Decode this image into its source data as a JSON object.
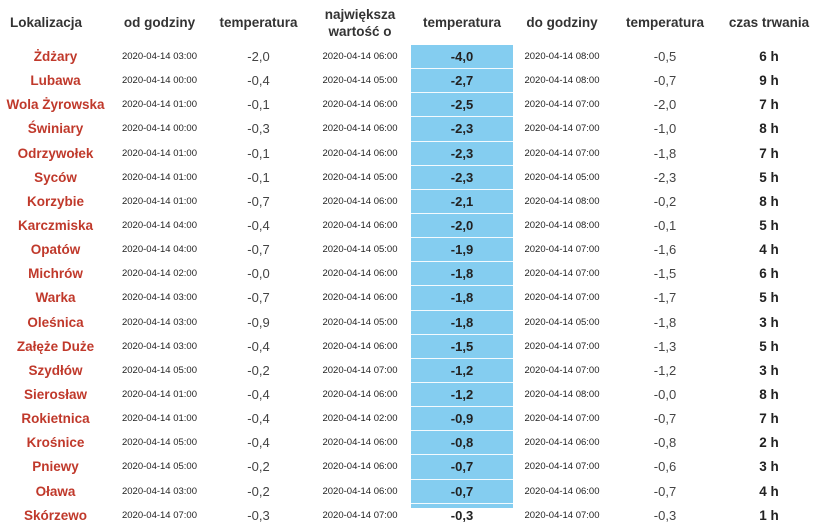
{
  "headers": {
    "location": "Lokalizacja",
    "from_hour": "od godziny",
    "temperature1": "temperatura",
    "largest_value_line1": "największa",
    "largest_value_line2": "wartość o",
    "temperature2": "temperatura",
    "to_hour": "do godziny",
    "temperature3": "temperatura",
    "duration": "czas trwania"
  },
  "colors": {
    "accent": "#84cdf0",
    "location_text": "#c0392b"
  },
  "rows": [
    {
      "loc": "Żdżary",
      "from": "2020-04-14 03:00",
      "t_from": "-2,0",
      "peak_time": "2020-04-14 06:00",
      "t_min": "-4,0",
      "to": "2020-04-14 08:00",
      "t_to": "-0,5",
      "dur": "6 h"
    },
    {
      "loc": "Lubawa",
      "from": "2020-04-14 00:00",
      "t_from": "-0,4",
      "peak_time": "2020-04-14 05:00",
      "t_min": "-2,7",
      "to": "2020-04-14 08:00",
      "t_to": "-0,7",
      "dur": "9 h"
    },
    {
      "loc": "Wola Żyrowska",
      "from": "2020-04-14 01:00",
      "t_from": "-0,1",
      "peak_time": "2020-04-14 06:00",
      "t_min": "-2,5",
      "to": "2020-04-14 07:00",
      "t_to": "-2,0",
      "dur": "7 h"
    },
    {
      "loc": "Świniary",
      "from": "2020-04-14 00:00",
      "t_from": "-0,3",
      "peak_time": "2020-04-14 06:00",
      "t_min": "-2,3",
      "to": "2020-04-14 07:00",
      "t_to": "-1,0",
      "dur": "8 h"
    },
    {
      "loc": "Odrzywołek",
      "from": "2020-04-14 01:00",
      "t_from": "-0,1",
      "peak_time": "2020-04-14 06:00",
      "t_min": "-2,3",
      "to": "2020-04-14 07:00",
      "t_to": "-1,8",
      "dur": "7 h"
    },
    {
      "loc": "Syców",
      "from": "2020-04-14 01:00",
      "t_from": "-0,1",
      "peak_time": "2020-04-14 05:00",
      "t_min": "-2,3",
      "to": "2020-04-14 05:00",
      "t_to": "-2,3",
      "dur": "5 h"
    },
    {
      "loc": "Korzybie",
      "from": "2020-04-14 01:00",
      "t_from": "-0,7",
      "peak_time": "2020-04-14 06:00",
      "t_min": "-2,1",
      "to": "2020-04-14 08:00",
      "t_to": "-0,2",
      "dur": "8 h"
    },
    {
      "loc": "Karczmiska",
      "from": "2020-04-14 04:00",
      "t_from": "-0,4",
      "peak_time": "2020-04-14 06:00",
      "t_min": "-2,0",
      "to": "2020-04-14 08:00",
      "t_to": "-0,1",
      "dur": "5 h"
    },
    {
      "loc": "Opatów",
      "from": "2020-04-14 04:00",
      "t_from": "-0,7",
      "peak_time": "2020-04-14 05:00",
      "t_min": "-1,9",
      "to": "2020-04-14 07:00",
      "t_to": "-1,6",
      "dur": "4 h"
    },
    {
      "loc": "Michrów",
      "from": "2020-04-14 02:00",
      "t_from": "-0,0",
      "peak_time": "2020-04-14 06:00",
      "t_min": "-1,8",
      "to": "2020-04-14 07:00",
      "t_to": "-1,5",
      "dur": "6 h"
    },
    {
      "loc": "Warka",
      "from": "2020-04-14 03:00",
      "t_from": "-0,7",
      "peak_time": "2020-04-14 06:00",
      "t_min": "-1,8",
      "to": "2020-04-14 07:00",
      "t_to": "-1,7",
      "dur": "5 h"
    },
    {
      "loc": "Oleśnica",
      "from": "2020-04-14 03:00",
      "t_from": "-0,9",
      "peak_time": "2020-04-14 05:00",
      "t_min": "-1,8",
      "to": "2020-04-14 05:00",
      "t_to": "-1,8",
      "dur": "3 h"
    },
    {
      "loc": "Załęże Duże",
      "from": "2020-04-14 03:00",
      "t_from": "-0,4",
      "peak_time": "2020-04-14 06:00",
      "t_min": "-1,5",
      "to": "2020-04-14 07:00",
      "t_to": "-1,3",
      "dur": "5 h"
    },
    {
      "loc": "Szydłów",
      "from": "2020-04-14 05:00",
      "t_from": "-0,2",
      "peak_time": "2020-04-14 07:00",
      "t_min": "-1,2",
      "to": "2020-04-14 07:00",
      "t_to": "-1,2",
      "dur": "3 h"
    },
    {
      "loc": "Sierosław",
      "from": "2020-04-14 01:00",
      "t_from": "-0,4",
      "peak_time": "2020-04-14 06:00",
      "t_min": "-1,2",
      "to": "2020-04-14 08:00",
      "t_to": "-0,0",
      "dur": "8 h"
    },
    {
      "loc": "Rokietnica",
      "from": "2020-04-14 01:00",
      "t_from": "-0,4",
      "peak_time": "2020-04-14 02:00",
      "t_min": "-0,9",
      "to": "2020-04-14 07:00",
      "t_to": "-0,7",
      "dur": "7 h"
    },
    {
      "loc": "Krośnice",
      "from": "2020-04-14 05:00",
      "t_from": "-0,4",
      "peak_time": "2020-04-14 06:00",
      "t_min": "-0,8",
      "to": "2020-04-14 06:00",
      "t_to": "-0,8",
      "dur": "2 h"
    },
    {
      "loc": "Pniewy",
      "from": "2020-04-14 05:00",
      "t_from": "-0,2",
      "peak_time": "2020-04-14 06:00",
      "t_min": "-0,7",
      "to": "2020-04-14 07:00",
      "t_to": "-0,6",
      "dur": "3 h"
    },
    {
      "loc": "Oława",
      "from": "2020-04-14 03:00",
      "t_from": "-0,2",
      "peak_time": "2020-04-14 06:00",
      "t_min": "-0,7",
      "to": "2020-04-14 06:00",
      "t_to": "-0,7",
      "dur": "4 h"
    },
    {
      "loc": "Skórzewo",
      "from": "2020-04-14 07:00",
      "t_from": "-0,3",
      "peak_time": "2020-04-14 07:00",
      "t_min": "-0,3",
      "to": "2020-04-14 07:00",
      "t_to": "-0,3",
      "dur": "1 h"
    }
  ]
}
